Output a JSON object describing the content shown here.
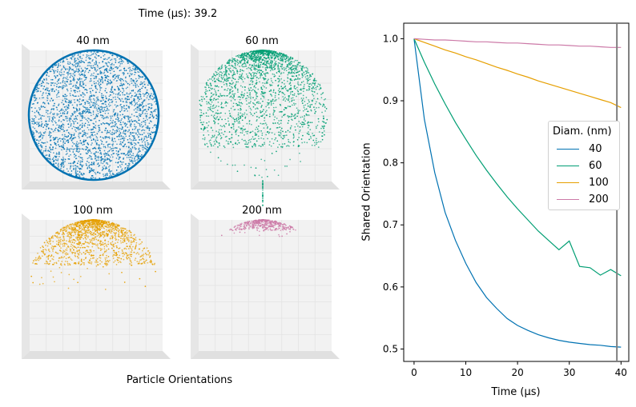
{
  "left_panel": {
    "time_label": "Time (μs): 39.2",
    "footer_label": "Particle Orientations",
    "subplots": [
      {
        "title": "40 nm",
        "color": "#0072B2",
        "coverage": 1.0
      },
      {
        "title": "60 nm",
        "color": "#009E73",
        "coverage": 0.75
      },
      {
        "title": "100 nm",
        "color": "#E69F00",
        "coverage": 0.35
      },
      {
        "title": "200 nm",
        "color": "#CC79A7",
        "coverage": 0.08
      }
    ]
  },
  "chart_data": {
    "type": "line",
    "xlabel": "Time (μs)",
    "ylabel": "Shared Orientation",
    "xlim": [
      -2,
      41.5
    ],
    "ylim": [
      0.48,
      1.025
    ],
    "xticks": [
      0,
      10,
      20,
      30,
      40
    ],
    "yticks": [
      0.5,
      0.6,
      0.7,
      0.8,
      0.9,
      1.0
    ],
    "ytick_labels": [
      "0.5",
      "0.6",
      "0.7",
      "0.8",
      "0.9",
      "1.0"
    ],
    "grid": false,
    "legend": {
      "title": "Diam. (nm)",
      "placement": "center-right"
    },
    "current_time": 39.2,
    "x": [
      0,
      2,
      4,
      6,
      8,
      10,
      12,
      14,
      16,
      18,
      20,
      22,
      24,
      26,
      28,
      30,
      32,
      34,
      36,
      38,
      40
    ],
    "series": [
      {
        "name": "40",
        "color": "#0072B2",
        "values": [
          1.0,
          0.87,
          0.784,
          0.72,
          0.675,
          0.638,
          0.607,
          0.583,
          0.565,
          0.549,
          0.538,
          0.53,
          0.523,
          0.518,
          0.514,
          0.511,
          0.509,
          0.507,
          0.506,
          0.504,
          0.503
        ]
      },
      {
        "name": "60",
        "color": "#009E73",
        "values": [
          1.0,
          0.962,
          0.927,
          0.895,
          0.865,
          0.838,
          0.812,
          0.788,
          0.766,
          0.745,
          0.726,
          0.708,
          0.69,
          0.675,
          0.66,
          0.674,
          0.633,
          0.631,
          0.619,
          0.628,
          0.618
        ]
      },
      {
        "name": "100",
        "color": "#E69F00",
        "values": [
          1.0,
          0.994,
          0.988,
          0.982,
          0.977,
          0.971,
          0.966,
          0.96,
          0.954,
          0.949,
          0.943,
          0.938,
          0.932,
          0.927,
          0.922,
          0.917,
          0.912,
          0.907,
          0.902,
          0.897,
          0.889
        ]
      },
      {
        "name": "200",
        "color": "#CC79A7",
        "values": [
          1.0,
          0.999,
          0.998,
          0.998,
          0.997,
          0.996,
          0.995,
          0.995,
          0.994,
          0.993,
          0.993,
          0.992,
          0.991,
          0.99,
          0.99,
          0.989,
          0.988,
          0.988,
          0.987,
          0.986,
          0.986
        ]
      }
    ]
  }
}
